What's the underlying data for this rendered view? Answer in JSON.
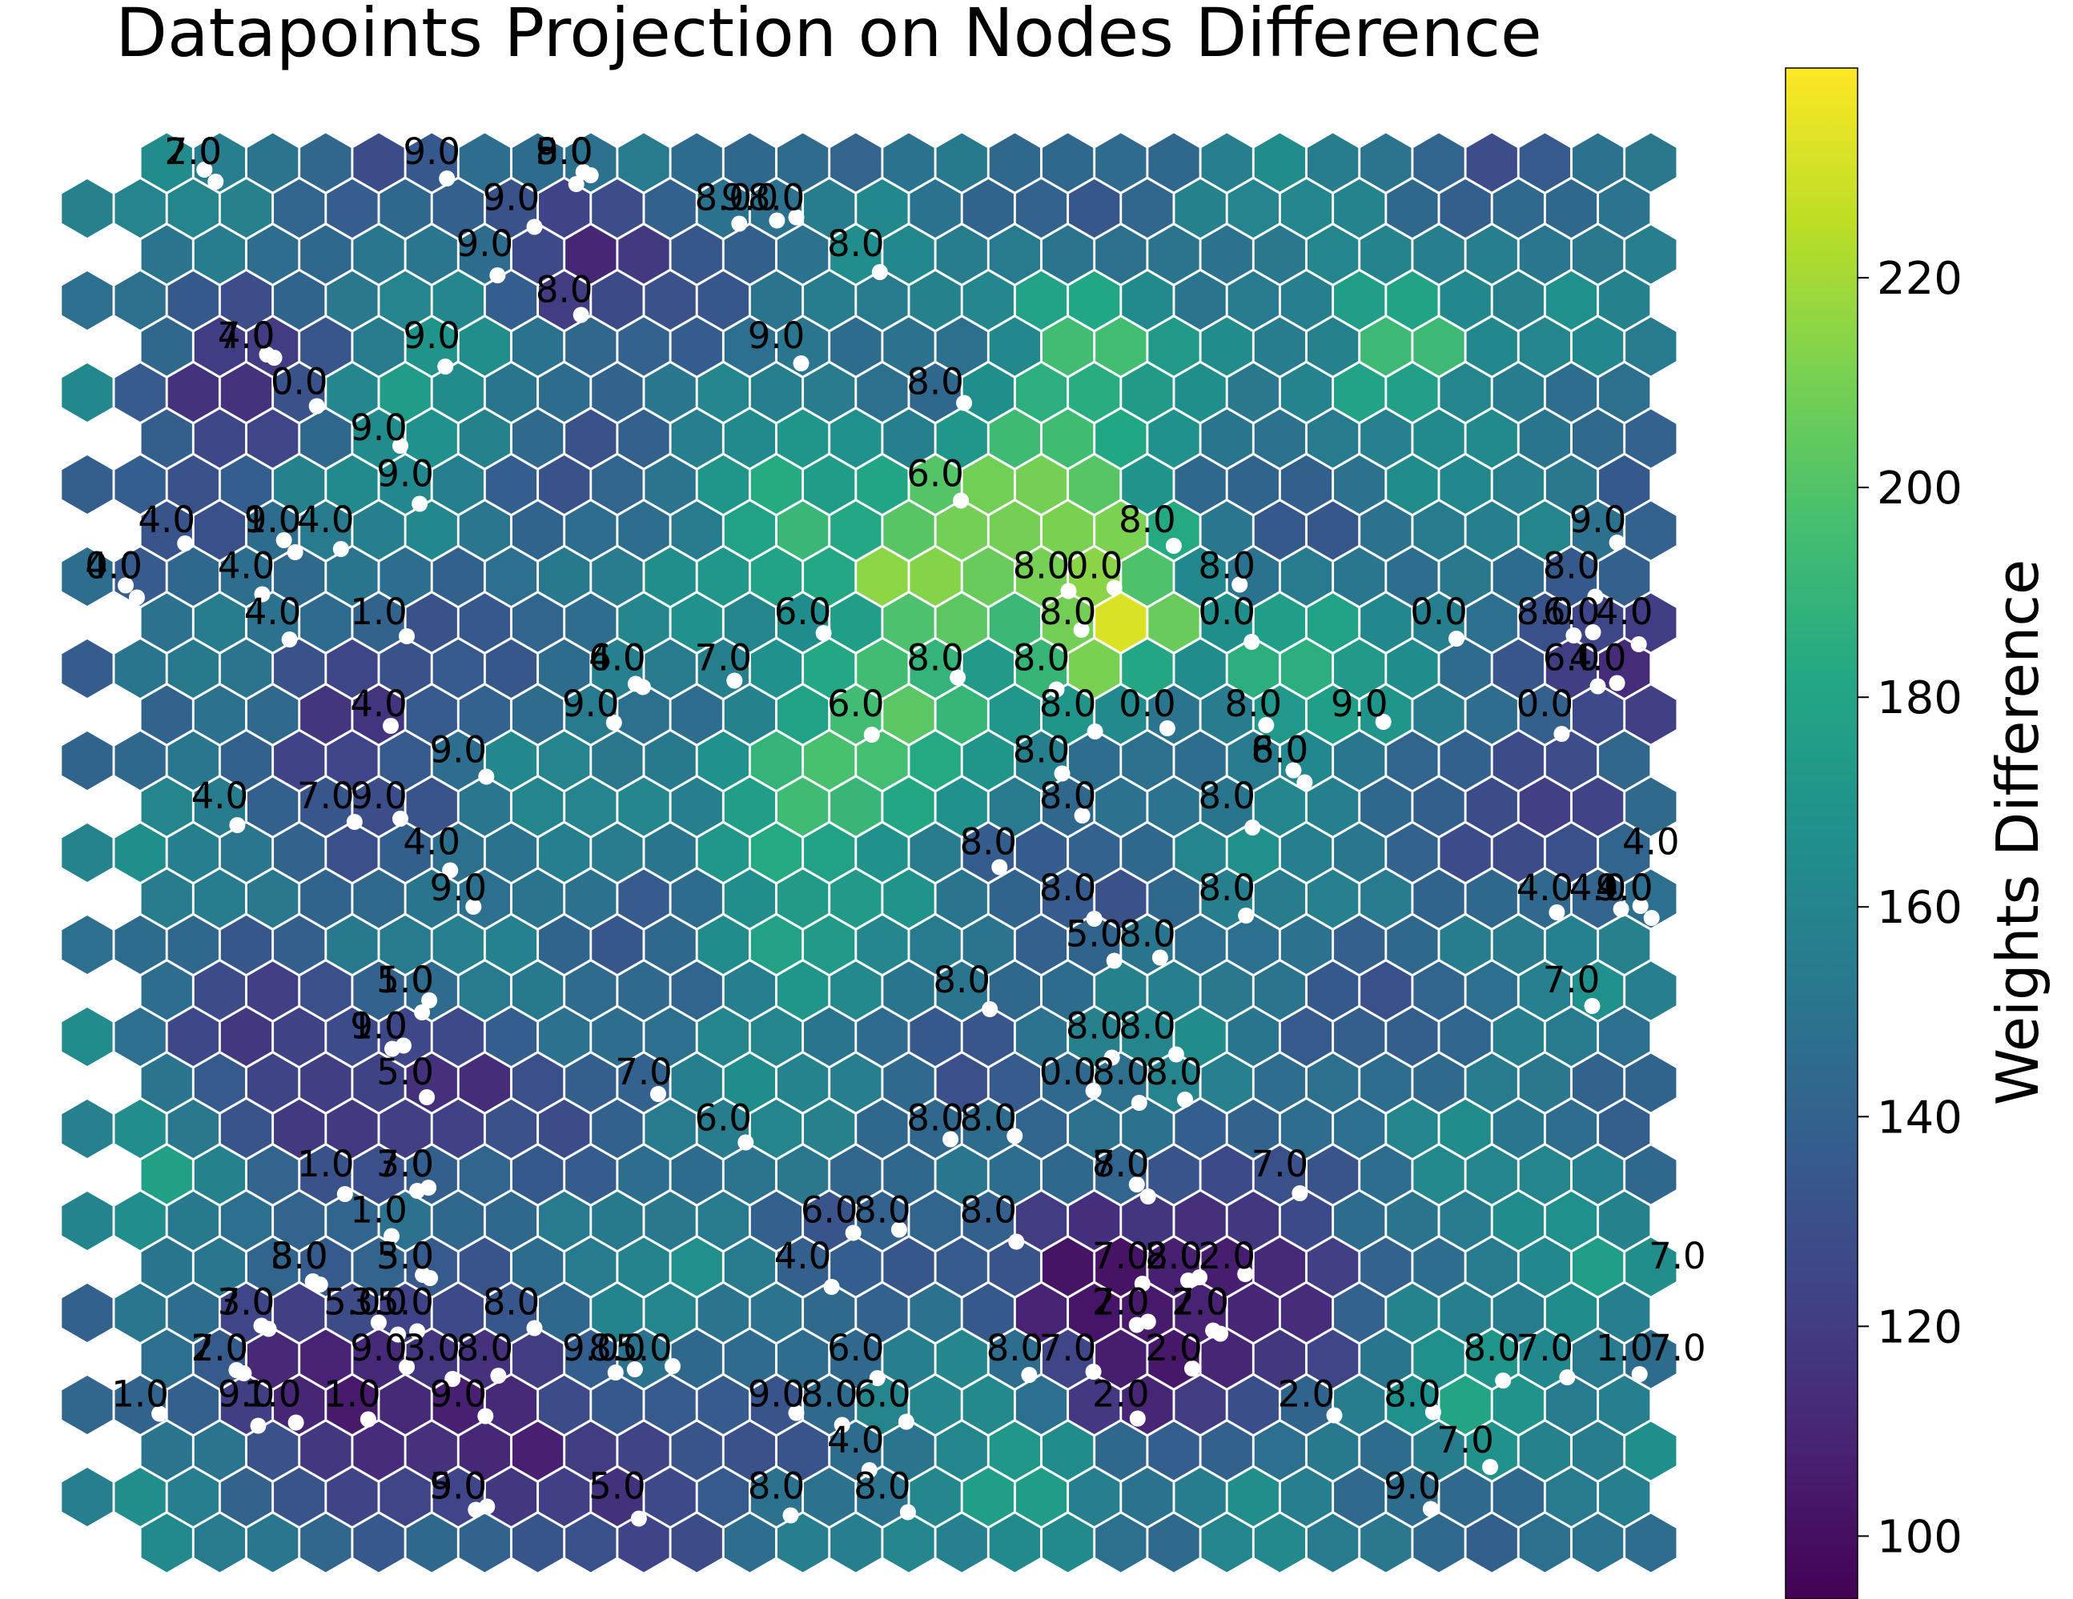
{
  "chart_data": {
    "type": "heatmap",
    "title": "Datapoints Projection on Nodes Difference",
    "colorbar": {
      "label": "Weights Difference",
      "range": [
        94,
        240
      ],
      "ticks": [
        100,
        120,
        140,
        160,
        180,
        200,
        220
      ],
      "colormap": "viridis"
    },
    "grid": {
      "rows": 31,
      "cols": 30
    },
    "hotspots": [
      {
        "col": 15.5,
        "row": 9,
        "value": 232
      },
      {
        "col": 19,
        "row": 10,
        "value": 238
      },
      {
        "col": 18.5,
        "row": 8,
        "value": 215
      },
      {
        "col": 17.5,
        "row": 7,
        "value": 212
      },
      {
        "col": 16.5,
        "row": 8,
        "value": 210
      },
      {
        "col": 15,
        "row": 12,
        "value": 205
      },
      {
        "col": 14,
        "row": 13,
        "value": 200
      },
      {
        "col": 13,
        "row": 14,
        "value": 195
      },
      {
        "col": 18.5,
        "row": 4,
        "value": 200
      },
      {
        "col": 24.5,
        "row": 4,
        "value": 200
      },
      {
        "col": 22.5,
        "row": 11,
        "value": 190
      },
      {
        "col": 13,
        "row": 8,
        "value": 192
      },
      {
        "col": 17.5,
        "row": 29,
        "value": 180
      },
      {
        "col": 26,
        "row": 27,
        "value": 180
      },
      {
        "col": 1,
        "row": 22,
        "value": 178
      },
      {
        "col": 13,
        "row": 17,
        "value": 178
      },
      {
        "col": 28,
        "row": 24,
        "value": 176
      },
      {
        "col": 6,
        "row": 5,
        "value": 175
      },
      {
        "col": 18.5,
        "row": 24,
        "value": 96
      },
      {
        "col": 19.5,
        "row": 25,
        "value": 100
      },
      {
        "col": 20,
        "row": 26,
        "value": 103
      },
      {
        "col": 21,
        "row": 24,
        "value": 106
      },
      {
        "col": 22.5,
        "row": 25,
        "value": 108
      },
      {
        "col": 3.5,
        "row": 26,
        "value": 106
      },
      {
        "col": 5,
        "row": 27,
        "value": 104
      },
      {
        "col": 7,
        "row": 27,
        "value": 108
      },
      {
        "col": 8,
        "row": 28,
        "value": 106
      },
      {
        "col": 2.5,
        "row": 5,
        "value": 112
      },
      {
        "col": 4.5,
        "row": 12,
        "value": 112
      },
      {
        "col": 6.5,
        "row": 20,
        "value": 110
      },
      {
        "col": 29,
        "row": 11,
        "value": 112
      },
      {
        "col": 9,
        "row": 2,
        "value": 110
      },
      {
        "col": 3,
        "row": 19,
        "value": 118
      },
      {
        "col": 4.5,
        "row": 21,
        "value": 115
      },
      {
        "col": 27.5,
        "row": 14,
        "value": 120
      },
      {
        "col": 10,
        "row": 29,
        "value": 115
      }
    ],
    "annotations": [
      [
        "7.0",
        1.5,
        0
      ],
      [
        "2.0",
        1.5,
        0
      ],
      [
        "9.0",
        6,
        0
      ],
      [
        "5.0",
        8.5,
        0
      ],
      [
        "9.0",
        8.5,
        0
      ],
      [
        "8.0",
        8.5,
        0
      ],
      [
        "9.0",
        7.5,
        1
      ],
      [
        "8.0",
        11.5,
        1
      ],
      [
        "9.0",
        12,
        1
      ],
      [
        "8.0",
        12.5,
        1
      ],
      [
        "9.0",
        7,
        2
      ],
      [
        "8.0",
        14,
        2
      ],
      [
        "8.0",
        8.5,
        3
      ],
      [
        "7.0",
        2.5,
        4
      ],
      [
        "4.0",
        2.5,
        4
      ],
      [
        "9.0",
        6,
        4
      ],
      [
        "9.0",
        12.5,
        4
      ],
      [
        "0.0",
        3.5,
        5
      ],
      [
        "8.0",
        15.5,
        5
      ],
      [
        "9.0",
        5,
        6
      ],
      [
        "9.0",
        5.5,
        7
      ],
      [
        "6.0",
        15.5,
        7
      ],
      [
        "4.0",
        1,
        8
      ],
      [
        "1.0",
        3,
        8
      ],
      [
        "9.0",
        3,
        8
      ],
      [
        "4.0",
        4,
        8
      ],
      [
        "8.0",
        19.5,
        8
      ],
      [
        "9.0",
        28,
        8
      ],
      [
        "4.0",
        0,
        9
      ],
      [
        "0.0",
        0,
        9
      ],
      [
        "4.0",
        2.5,
        9
      ],
      [
        "8.0",
        17.5,
        9
      ],
      [
        "0.0",
        18.5,
        9
      ],
      [
        "8.0",
        21,
        9
      ],
      [
        "8.0",
        27.5,
        9
      ],
      [
        "4.0",
        3,
        10
      ],
      [
        "1.0",
        5,
        10
      ],
      [
        "6.0",
        13,
        10
      ],
      [
        "8.0",
        18,
        10
      ],
      [
        "0.0",
        21,
        10
      ],
      [
        "0.0",
        25,
        10
      ],
      [
        "8.0",
        27,
        10
      ],
      [
        "6.0",
        27.5,
        10
      ],
      [
        "4.0",
        28.5,
        10
      ],
      [
        "6.0",
        9.5,
        11
      ],
      [
        "4.0",
        9.5,
        11
      ],
      [
        "7.0",
        11.5,
        11
      ],
      [
        "8.0",
        15.5,
        11
      ],
      [
        "8.0",
        17.5,
        11
      ],
      [
        "6.0",
        27.5,
        11
      ],
      [
        "4.0",
        28,
        11
      ],
      [
        "4.0",
        5,
        12
      ],
      [
        "9.0",
        9,
        12
      ],
      [
        "6.0",
        14,
        12
      ],
      [
        "8.0",
        18,
        12
      ],
      [
        "0.0",
        19.5,
        12
      ],
      [
        "8.0",
        21.5,
        12
      ],
      [
        "9.0",
        23.5,
        12
      ],
      [
        "0.0",
        27,
        12
      ],
      [
        "9.0",
        6.5,
        13
      ],
      [
        "8.0",
        17.5,
        13
      ],
      [
        "6.0",
        22,
        13
      ],
      [
        "8.0",
        22,
        13
      ],
      [
        "4.0",
        2,
        14
      ],
      [
        "7.0",
        4,
        14
      ],
      [
        "9.0",
        5,
        14
      ],
      [
        "8.0",
        18,
        14
      ],
      [
        "8.0",
        21,
        14
      ],
      [
        "4.0",
        6,
        15
      ],
      [
        "8.0",
        16.5,
        15
      ],
      [
        "4.0",
        29,
        15
      ],
      [
        "9.0",
        6.5,
        16
      ],
      [
        "8.0",
        18,
        16
      ],
      [
        "8.0",
        21,
        16
      ],
      [
        "4.0",
        27,
        16
      ],
      [
        "4.0",
        28,
        16
      ],
      [
        "9.0",
        28.5,
        16
      ],
      [
        "4.0",
        28.5,
        16
      ],
      [
        "5.0",
        18.5,
        17
      ],
      [
        "8.0",
        19.5,
        17
      ],
      [
        "5.0",
        5.5,
        18
      ],
      [
        "1.0",
        5.5,
        18
      ],
      [
        "8.0",
        16,
        18
      ],
      [
        "7.0",
        27.5,
        18
      ],
      [
        "9.0",
        5,
        19
      ],
      [
        "1.0",
        5,
        19
      ],
      [
        "8.0",
        18.5,
        19
      ],
      [
        "8.0",
        19.5,
        19
      ],
      [
        "5.0",
        5.5,
        20
      ],
      [
        "7.0",
        10,
        20
      ],
      [
        "0.0",
        18,
        20
      ],
      [
        "8.0",
        19,
        20
      ],
      [
        "8.0",
        20,
        20
      ],
      [
        "6.0",
        11.5,
        21
      ],
      [
        "8.0",
        15.5,
        21
      ],
      [
        "8.0",
        16.5,
        21
      ],
      [
        "1.0",
        4,
        22
      ],
      [
        "3.0",
        5.5,
        22
      ],
      [
        "7.0",
        5.5,
        22
      ],
      [
        "8.0",
        19,
        22
      ],
      [
        "7.0",
        19,
        22
      ],
      [
        "7.0",
        22,
        22
      ],
      [
        "1.0",
        5,
        23
      ],
      [
        "6.0",
        13.5,
        23
      ],
      [
        "8.0",
        14.5,
        23
      ],
      [
        "8.0",
        16.5,
        23
      ],
      [
        "8.0",
        3.5,
        24
      ],
      [
        "3.0",
        3.5,
        24
      ],
      [
        "5.0",
        5.5,
        24
      ],
      [
        "3.0",
        5.5,
        24
      ],
      [
        "4.0",
        13,
        24
      ],
      [
        "7.0",
        19,
        24
      ],
      [
        "2.0",
        20,
        24
      ],
      [
        "8.0",
        20,
        24
      ],
      [
        "2.0",
        21,
        24
      ],
      [
        "7.0",
        29.5,
        24
      ],
      [
        "3.0",
        2.5,
        25
      ],
      [
        "7.0",
        2.5,
        25
      ],
      [
        "5.0",
        4.5,
        25
      ],
      [
        "3.0",
        5,
        25
      ],
      [
        "5.0",
        5.5,
        25
      ],
      [
        "8.0",
        7.5,
        25
      ],
      [
        "2.0",
        19,
        25
      ],
      [
        "7.0",
        19,
        25
      ],
      [
        "2.0",
        20.5,
        25
      ],
      [
        "7.0",
        20.5,
        25
      ],
      [
        "7.0",
        2,
        26
      ],
      [
        "2.0",
        2,
        26
      ],
      [
        "9.0",
        5,
        26
      ],
      [
        "3.0",
        6,
        26
      ],
      [
        "8.0",
        7,
        26
      ],
      [
        "9.0",
        9,
        26
      ],
      [
        "8.0",
        9.5,
        26
      ],
      [
        "5.0",
        10,
        26
      ],
      [
        "6.0",
        14,
        26
      ],
      [
        "8.0",
        17,
        26
      ],
      [
        "7.0",
        18,
        26
      ],
      [
        "2.0",
        20,
        26
      ],
      [
        "8.0",
        26,
        26
      ],
      [
        "7.0",
        27,
        26
      ],
      [
        "1.0",
        28.5,
        26
      ],
      [
        "7.0",
        29.5,
        26
      ],
      [
        "1.0",
        0.5,
        27
      ],
      [
        "9.0",
        2.5,
        27
      ],
      [
        "1.0",
        3,
        27
      ],
      [
        "1.0",
        4.5,
        27
      ],
      [
        "9.0",
        6.5,
        27
      ],
      [
        "9.0",
        12.5,
        27
      ],
      [
        "8.0",
        13.5,
        27
      ],
      [
        "6.0",
        14.5,
        27
      ],
      [
        "2.0",
        19,
        27
      ],
      [
        "2.0",
        22.5,
        27
      ],
      [
        "8.0",
        24.5,
        27
      ],
      [
        "4.0",
        14,
        28
      ],
      [
        "7.0",
        25.5,
        28
      ],
      [
        "9.0",
        6.5,
        29
      ],
      [
        "5.0",
        6.5,
        29
      ],
      [
        "5.0",
        9.5,
        29
      ],
      [
        "8.0",
        12.5,
        29
      ],
      [
        "8.0",
        14.5,
        29
      ],
      [
        "9.0",
        24.5,
        29
      ]
    ]
  }
}
